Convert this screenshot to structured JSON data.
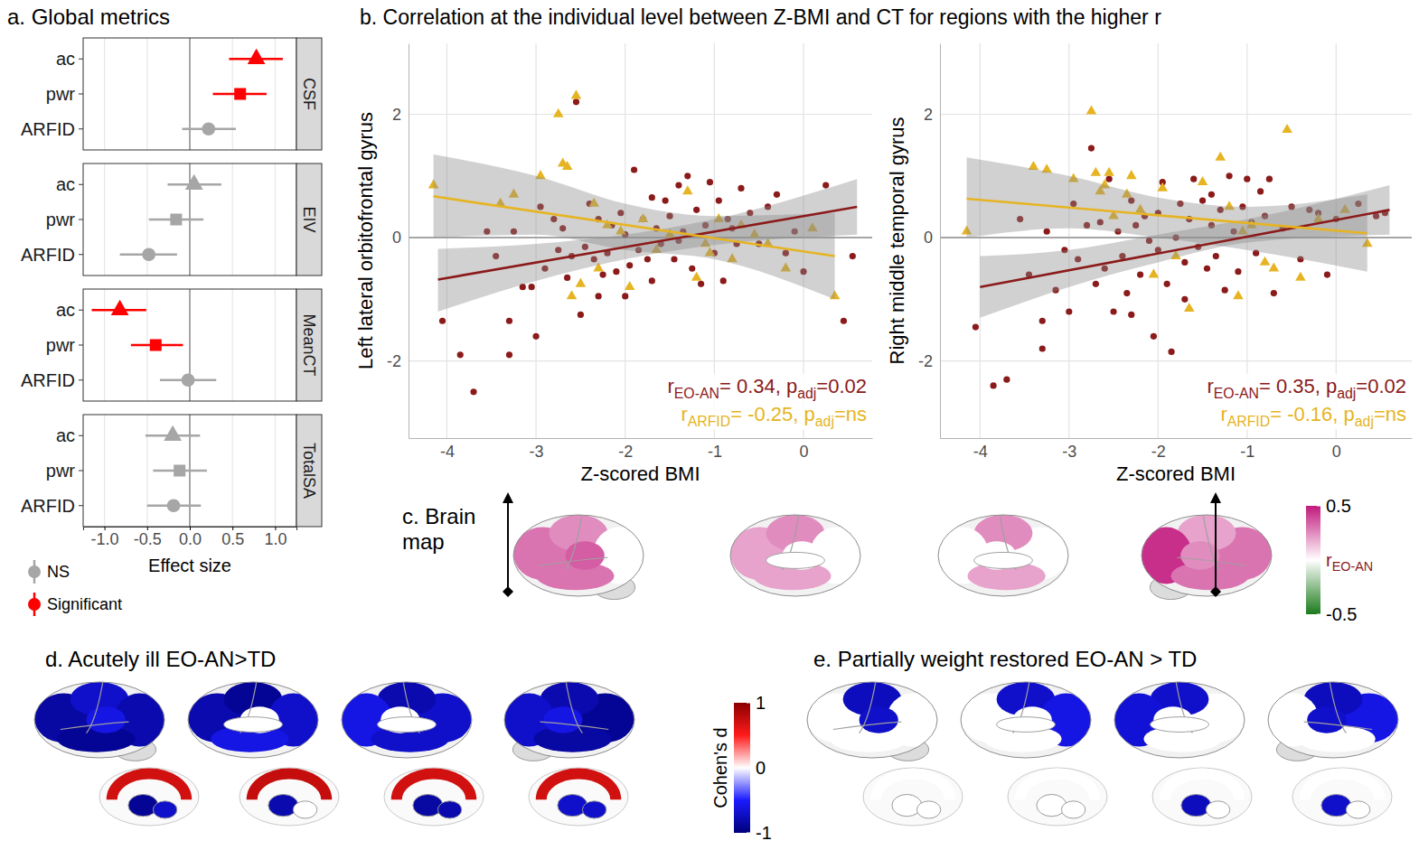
{
  "chart_data": [
    {
      "type": "forest",
      "title": "a. Global metrics",
      "x_label": "Effect size",
      "xlim": [
        -1.25,
        1.25
      ],
      "xticks": [
        {
          "value": -1,
          "label": "-1.0"
        },
        -0.5,
        {
          "value": 0,
          "label": "0.0"
        },
        0.5,
        {
          "value": 1,
          "label": "1.0"
        }
      ],
      "grid": true,
      "vline": 0,
      "legend": "bottom-left",
      "legend_items": [
        {
          "name": "NS",
          "color": "#a6a6a6"
        },
        {
          "name": "Significant",
          "color": "#ff0000"
        }
      ],
      "panels": [
        {
          "name": "CSF",
          "series": [
            {
              "name": "ac",
              "marker": "triangle",
              "color": "#ff0000",
              "values": [
                0.78
              ],
              "ci_low": [
                0.46
              ],
              "ci_high": [
                1.09
              ]
            },
            {
              "name": "pwr",
              "marker": "square",
              "color": "#ff0000",
              "values": [
                0.59
              ],
              "ci_low": [
                0.27
              ],
              "ci_high": [
                0.9
              ]
            },
            {
              "name": "ARFID",
              "marker": "circle",
              "color": "#a6a6a6",
              "values": [
                0.22
              ],
              "ci_low": [
                -0.09
              ],
              "ci_high": [
                0.54
              ]
            }
          ]
        },
        {
          "name": "EIV",
          "series": [
            {
              "name": "ac",
              "marker": "triangle",
              "color": "#a6a6a6",
              "values": [
                0.05
              ],
              "ci_low": [
                -0.26
              ],
              "ci_high": [
                0.37
              ]
            },
            {
              "name": "pwr",
              "marker": "square",
              "color": "#a6a6a6",
              "values": [
                -0.16
              ],
              "ci_low": [
                -0.48
              ],
              "ci_high": [
                0.16
              ]
            },
            {
              "name": "ARFID",
              "marker": "circle",
              "color": "#a6a6a6",
              "values": [
                -0.48
              ],
              "ci_low": [
                -0.82
              ],
              "ci_high": [
                -0.15
              ]
            }
          ]
        },
        {
          "name": "MeanCT",
          "series": [
            {
              "name": "ac",
              "marker": "triangle",
              "color": "#ff0000",
              "values": [
                -0.82
              ],
              "ci_low": [
                -1.15
              ],
              "ci_high": [
                -0.51
              ]
            },
            {
              "name": "pwr",
              "marker": "square",
              "color": "#ff0000",
              "values": [
                -0.4
              ],
              "ci_low": [
                -0.69
              ],
              "ci_high": [
                -0.08
              ]
            },
            {
              "name": "ARFID",
              "marker": "circle",
              "color": "#a6a6a6",
              "values": [
                -0.02
              ],
              "ci_low": [
                -0.35
              ],
              "ci_high": [
                0.31
              ]
            }
          ]
        },
        {
          "name": "TotalSA",
          "series": [
            {
              "name": "ac",
              "marker": "triangle",
              "color": "#a6a6a6",
              "values": [
                -0.2
              ],
              "ci_low": [
                -0.52
              ],
              "ci_high": [
                0.12
              ]
            },
            {
              "name": "pwr",
              "marker": "square",
              "color": "#a6a6a6",
              "values": [
                -0.12
              ],
              "ci_low": [
                -0.43
              ],
              "ci_high": [
                0.2
              ]
            },
            {
              "name": "ARFID",
              "marker": "circle",
              "color": "#a6a6a6",
              "values": [
                -0.19
              ],
              "ci_low": [
                -0.5
              ],
              "ci_high": [
                0.13
              ]
            }
          ]
        }
      ]
    },
    {
      "type": "scatter",
      "title": "b. Correlation at the individual level between Z-BMI and CT for regions with the higher r",
      "x_label": "Z-scored BMI",
      "y_label": "Left lateral orbitofrontal gyrus",
      "xlim": [
        -4.43,
        0.77
      ],
      "ylim": [
        -3.25,
        3.15
      ],
      "xticks": [
        -4,
        -3,
        -2,
        -1,
        0
      ],
      "yticks": [
        -2,
        0,
        2
      ],
      "grid": true,
      "hline": 0,
      "series": [
        {
          "type": "scatter",
          "marker": "circle",
          "color": "#8b1a1a",
          "x": [
            -4.05,
            -3.85,
            -3.7,
            -3.55,
            -3.45,
            -3.3,
            -3.3,
            -3.25,
            -3.15,
            -3.05,
            -3.0,
            -2.95,
            -2.9,
            -2.8,
            -2.75,
            -2.7,
            -2.65,
            -2.6,
            -2.55,
            -2.5,
            -2.45,
            -2.4,
            -2.35,
            -2.3,
            -2.3,
            -2.25,
            -2.2,
            -2.15,
            -2.1,
            -2.05,
            -2.0,
            -2.0,
            -1.95,
            -1.9,
            -1.85,
            -1.8,
            -1.75,
            -1.7,
            -1.7,
            -1.65,
            -1.6,
            -1.55,
            -1.5,
            -1.45,
            -1.4,
            -1.4,
            -1.35,
            -1.3,
            -1.25,
            -1.2,
            -1.15,
            -1.1,
            -1.05,
            -1.0,
            -0.95,
            -0.9,
            -0.85,
            -0.8,
            -0.75,
            -0.7,
            -0.6,
            -0.5,
            -0.4,
            -0.3,
            -0.2,
            -0.1,
            0.0,
            0.25,
            0.45,
            0.55
          ],
          "values": [
            -1.35,
            -1.9,
            -2.5,
            0.1,
            -0.3,
            -1.35,
            -1.9,
            0.1,
            -0.8,
            -0.8,
            -1.6,
            0.5,
            -0.5,
            0.3,
            -0.2,
            0.15,
            -0.65,
            -0.3,
            2.2,
            -1.25,
            -0.15,
            0.55,
            -0.35,
            0.3,
            -0.95,
            -0.6,
            -0.25,
            0.2,
            -0.55,
            0.4,
            -0.95,
            0.05,
            -0.45,
            1.1,
            -0.2,
            0.3,
            -0.35,
            -0.7,
            0.65,
            0.15,
            -0.1,
            0.6,
            0.35,
            -0.35,
            0.85,
            -0.05,
            0.1,
            1.0,
            -0.5,
            0.45,
            -0.75,
            0.2,
            0.9,
            -0.25,
            0.6,
            -0.7,
            0.3,
            0.15,
            -0.1,
            0.8,
            0.4,
            -0.1,
            0.5,
            0.7,
            -0.25,
            0.1,
            -0.55,
            0.85,
            -1.35,
            -0.3
          ]
        },
        {
          "type": "scatter",
          "marker": "triangle",
          "color": "#e6b422",
          "x": [
            -4.15,
            -3.4,
            -3.25,
            -2.95,
            -2.75,
            -2.7,
            -2.65,
            -2.6,
            -2.55,
            -2.5,
            -2.35,
            -2.3,
            -2.2,
            -2.05,
            -1.95,
            -1.8,
            -1.65,
            -1.5,
            -1.3,
            -1.2,
            -1.1,
            -1.05,
            -0.95,
            -0.8,
            -0.7,
            -0.55,
            -0.4,
            -0.2,
            0.1,
            0.35
          ],
          "values": [
            0.85,
            0.55,
            0.7,
            1.0,
            2.0,
            1.2,
            1.15,
            -0.95,
            2.3,
            -0.75,
            0.55,
            -0.5,
            0.2,
            0.1,
            -0.8,
            0.3,
            -0.2,
            0.05,
            0.75,
            -0.65,
            -0.1,
            -0.25,
            0.3,
            -0.35,
            0.2,
            0.05,
            -0.1,
            -0.5,
            0.15,
            -0.95
          ]
        },
        {
          "type": "band",
          "color": "#8c8c8c",
          "x": [
            -4.1,
            -3,
            -2,
            -1,
            0.6
          ],
          "low": [
            -1.2,
            -0.7,
            -0.35,
            -0.12,
            0.05
          ],
          "high": [
            -0.18,
            -0.1,
            0.05,
            0.3,
            0.95
          ]
        },
        {
          "type": "band",
          "color": "#8c8c8c",
          "x": [
            -4.15,
            -3,
            -2,
            -1,
            0.35
          ],
          "low": [
            0.0,
            0.05,
            -0.2,
            -0.35,
            -1.0
          ],
          "high": [
            1.35,
            1.0,
            0.55,
            0.35,
            0.4
          ]
        },
        {
          "type": "line",
          "color": "#8b1a1a",
          "x": [
            -4.1,
            0.6
          ],
          "values": [
            -0.68,
            0.5
          ]
        },
        {
          "type": "line",
          "color": "#e6b422",
          "x": [
            -4.15,
            0.35
          ],
          "values": [
            0.67,
            -0.3
          ]
        }
      ],
      "annotations": [
        {
          "text": "rEO-AN= 0.34, padj=0.02",
          "color": "#8b1a1a"
        },
        {
          "text": "rARFID= -0.25, padj=ns",
          "color": "#e6b422"
        }
      ]
    },
    {
      "type": "scatter",
      "x_label": "Z-scored BMI",
      "y_label": "Right middle temporal gyrus",
      "xlim": [
        -4.45,
        0.85
      ],
      "ylim": [
        -3.25,
        3.15
      ],
      "xticks": [
        -4,
        -3,
        -2,
        -1,
        0
      ],
      "yticks": [
        -2,
        0,
        2
      ],
      "grid": true,
      "hline": 0,
      "series": [
        {
          "type": "scatter",
          "marker": "circle",
          "color": "#8b1a1a",
          "x": [
            -4.05,
            -3.85,
            -3.7,
            -3.55,
            -3.45,
            -3.3,
            -3.3,
            -3.25,
            -3.15,
            -3.05,
            -3.0,
            -2.95,
            -2.9,
            -2.8,
            -2.75,
            -2.7,
            -2.65,
            -2.6,
            -2.55,
            -2.5,
            -2.45,
            -2.4,
            -2.35,
            -2.3,
            -2.3,
            -2.25,
            -2.2,
            -2.15,
            -2.1,
            -2.05,
            -2.0,
            -2.0,
            -1.95,
            -1.9,
            -1.85,
            -1.8,
            -1.75,
            -1.7,
            -1.7,
            -1.65,
            -1.6,
            -1.55,
            -1.5,
            -1.45,
            -1.4,
            -1.4,
            -1.35,
            -1.3,
            -1.25,
            -1.2,
            -1.15,
            -1.1,
            -1.05,
            -1.0,
            -0.95,
            -0.9,
            -0.85,
            -0.8,
            -0.75,
            -0.7,
            -0.6,
            -0.5,
            -0.4,
            -0.3,
            -0.2,
            -0.1,
            0.0,
            0.25,
            0.45,
            0.55
          ],
          "values": [
            -1.45,
            -2.4,
            -2.3,
            0.3,
            -0.6,
            -1.35,
            -1.8,
            0.1,
            -0.85,
            -0.2,
            -1.2,
            0.55,
            -0.35,
            0.2,
            1.45,
            -0.75,
            0.25,
            -0.5,
            0.95,
            -1.2,
            0.1,
            -0.3,
            -0.9,
            0.6,
            -1.25,
            0.2,
            -0.6,
            0.35,
            -0.05,
            -1.6,
            0.4,
            -0.2,
            0.9,
            -0.75,
            -1.85,
            0.0,
            0.55,
            -0.4,
            -1.0,
            0.3,
            0.95,
            -0.15,
            0.6,
            -0.5,
            0.2,
            0.7,
            -0.3,
            0.45,
            -0.85,
            1.0,
            0.1,
            -0.55,
            0.5,
            0.95,
            0.25,
            -0.25,
            0.75,
            0.35,
            0.95,
            -0.9,
            0.15,
            0.5,
            -0.35,
            0.45,
            0.4,
            -0.6,
            0.3,
            0.55,
            0.35,
            0.4
          ]
        },
        {
          "type": "scatter",
          "marker": "triangle",
          "color": "#e6b422",
          "x": [
            -4.15,
            -3.4,
            -3.25,
            -2.95,
            -2.75,
            -2.7,
            -2.65,
            -2.6,
            -2.55,
            -2.5,
            -2.35,
            -2.3,
            -2.2,
            -2.05,
            -1.95,
            -1.8,
            -1.65,
            -1.5,
            -1.3,
            -1.2,
            -1.1,
            -1.05,
            -0.95,
            -0.8,
            -0.7,
            -0.55,
            -0.4,
            -0.2,
            0.1,
            0.35
          ],
          "values": [
            0.1,
            1.15,
            1.1,
            0.95,
            2.05,
            1.05,
            0.75,
            0.85,
            1.05,
            0.35,
            0.7,
            1.0,
            0.45,
            -0.6,
            0.8,
            -0.3,
            -1.15,
            0.9,
            1.3,
            0.5,
            -0.95,
            0.1,
            0.2,
            -0.4,
            -0.5,
            1.75,
            -0.65,
            0.3,
            0.45,
            -0.1
          ]
        },
        {
          "type": "band",
          "color": "#8c8c8c",
          "x": [
            -4.0,
            -3,
            -2,
            -1,
            0.6
          ],
          "low": [
            -1.3,
            -0.8,
            -0.4,
            -0.08,
            0.05
          ],
          "high": [
            -0.3,
            -0.2,
            0.05,
            0.3,
            0.85
          ]
        },
        {
          "type": "band",
          "color": "#8c8c8c",
          "x": [
            -4.15,
            -3,
            -2,
            -1,
            0.35
          ],
          "low": [
            0.0,
            0.15,
            0.0,
            -0.2,
            -0.55
          ],
          "high": [
            1.3,
            1.0,
            0.65,
            0.5,
            0.7
          ]
        },
        {
          "type": "line",
          "color": "#8b1a1a",
          "x": [
            -4.0,
            0.6
          ],
          "values": [
            -0.8,
            0.45
          ]
        },
        {
          "type": "line",
          "color": "#e6b422",
          "x": [
            -4.15,
            0.35
          ],
          "values": [
            0.63,
            0.07
          ]
        }
      ],
      "annotations": [
        {
          "text": "rEO-AN= 0.35, padj=0.02",
          "color": "#8b1a1a"
        },
        {
          "text": "rARFID= -0.16, padj=ns",
          "color": "#e6b422"
        }
      ]
    },
    {
      "type": "brain_map",
      "title": "c. Brain map",
      "cortical_views": [
        [
          0.3,
          0.25,
          0.0,
          0.3,
          0.35
        ],
        [
          0.2,
          0.25,
          0.0,
          0.2,
          0.0
        ],
        [
          0.0,
          0.25,
          0.0,
          0.2,
          0.0
        ],
        [
          0.3,
          0.2,
          0.45,
          0.3,
          0.25
        ]
      ],
      "colorbar": {
        "range": [
          -0.5,
          0.5
        ],
        "ticks": [
          0.5,
          -0.5
        ],
        "label": "rEO-AN",
        "colors": [
          "#1b7a1b",
          "#ffffff",
          "#c2187d"
        ]
      }
    },
    {
      "type": "brain_map",
      "title": "d. Acutely ill EO-AN>TD",
      "cortical_views": [
        [
          -0.85,
          -0.7,
          -0.8,
          -0.9,
          -0.6
        ],
        [
          -0.8,
          -0.9,
          -0.7,
          -0.6,
          0.0
        ],
        [
          -0.7,
          -0.8,
          -0.6,
          -0.7,
          0.0
        ],
        [
          -0.9,
          -0.8,
          -0.7,
          -0.85,
          -0.6
        ]
      ],
      "subcortical_views": [
        [
          0.7,
          -0.9,
          -0.7
        ],
        [
          0.75,
          -0.8,
          0.0
        ],
        [
          0.7,
          -0.85,
          -0.8
        ],
        [
          0.7,
          -0.7,
          -0.7
        ]
      ],
      "colorbar": {
        "range": [
          -1,
          1
        ],
        "ticks": [
          1,
          0,
          -1
        ],
        "label": "Cohen's d",
        "colors": [
          "#00007a",
          "#1a1aff",
          "#ffffff",
          "#ff1a1a",
          "#8b0000"
        ]
      }
    },
    {
      "type": "brain_map",
      "title": "e. Partially weight restored EO-AN > TD",
      "cortical_views": [
        [
          0.0,
          -0.75,
          0.0,
          0.0,
          -0.7
        ],
        [
          0.0,
          -0.7,
          -0.6,
          0.0,
          0.0
        ],
        [
          0.0,
          -0.7,
          -0.65,
          0.0,
          0.0
        ],
        [
          -0.6,
          -0.75,
          0.0,
          0.0,
          -0.7
        ]
      ],
      "subcortical_views": [
        [
          0.0,
          0.0,
          0.0
        ],
        [
          0.0,
          0.0,
          0.0
        ],
        [
          0.0,
          -0.75,
          0.0
        ],
        [
          0.0,
          -0.7,
          0.0
        ]
      ]
    }
  ]
}
